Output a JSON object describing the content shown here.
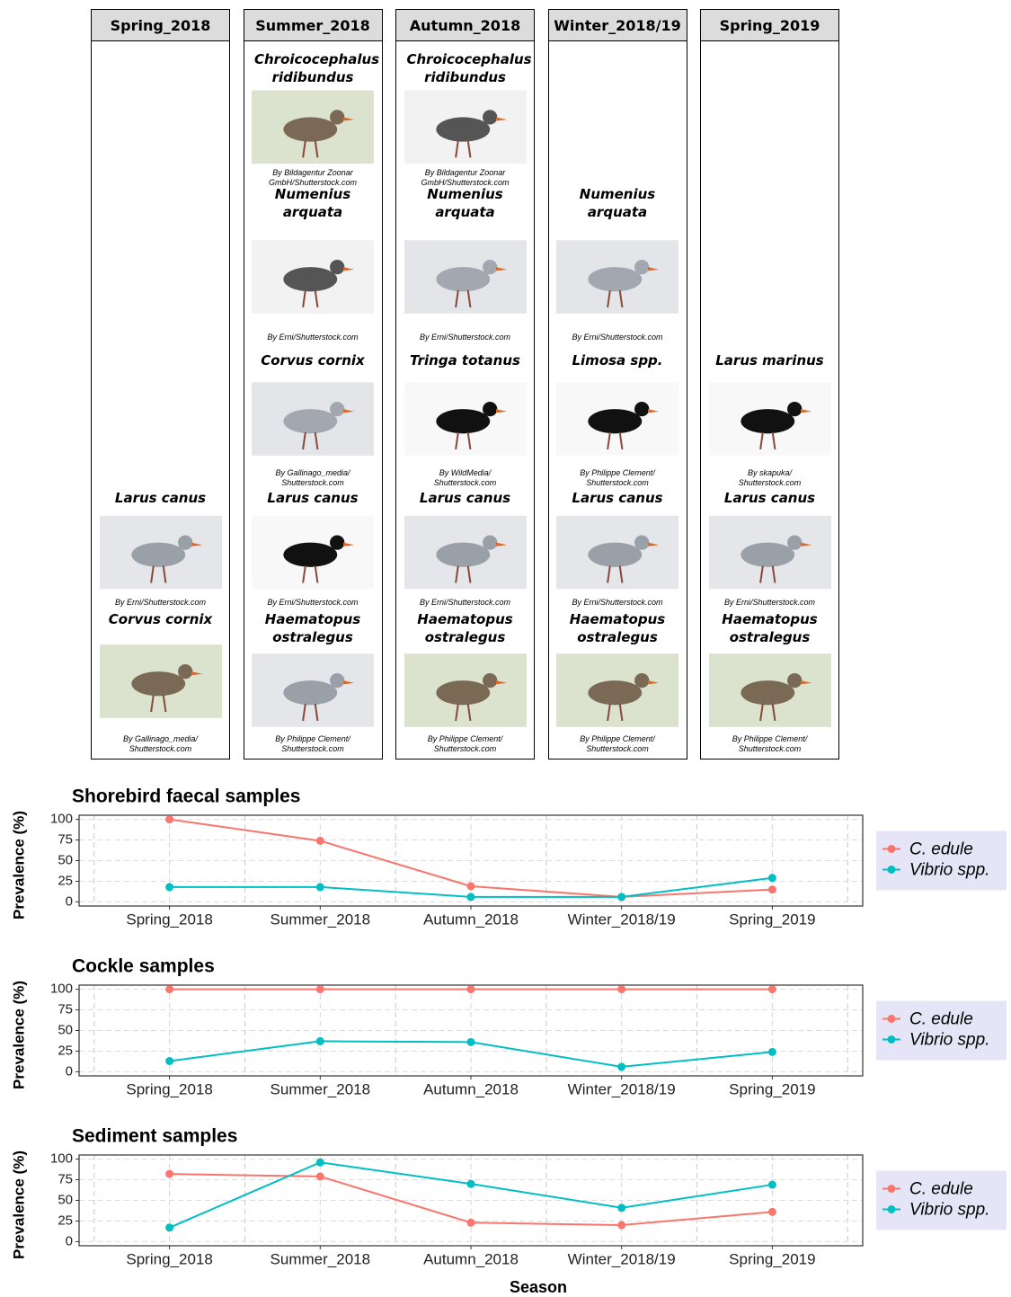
{
  "bird_panel": {
    "columns": [
      {
        "header": "Spring_2018",
        "birds": [
          {
            "name": "Larus canus",
            "credit": "By Erni/Shutterstock.com"
          },
          {
            "name": "Corvus cornix",
            "credit": "By Gallinago_media/ Shutterstock.com"
          }
        ]
      },
      {
        "header": "Summer_2018",
        "birds": [
          {
            "name": "Chroicocephalus ridibundus",
            "credit": "By Bildagentur Zoonar GmbH/Shutterstock.com"
          },
          {
            "name": "Numenius arquata",
            "credit": "By Erni/Shutterstock.com"
          },
          {
            "name": "Corvus cornix",
            "credit": "By Gallinago_media/ Shutterstock.com"
          },
          {
            "name": "Larus canus",
            "credit": "By Erni/Shutterstock.com"
          },
          {
            "name": "Haematopus ostralegus",
            "credit": "By Philippe Clement/ Shutterstock.com"
          }
        ]
      },
      {
        "header": "Autumn_2018",
        "birds": [
          {
            "name": "Chroicocephalus ridibundus",
            "credit": "By Bildagentur Zoonar GmbH/Shutterstock.com"
          },
          {
            "name": "Numenius arquata",
            "credit": "By Erni/Shutterstock.com"
          },
          {
            "name": "Tringa totanus",
            "credit": "By WildMedia/ Shutterstock.com"
          },
          {
            "name": "Larus canus",
            "credit": "By Erni/Shutterstock.com"
          },
          {
            "name": "Haematopus ostralegus",
            "credit": "By Philippe Clement/ Shutterstock.com"
          }
        ]
      },
      {
        "header": "Winter_2018/19",
        "birds": [
          {
            "name": "Numenius arquata",
            "credit": "By Erni/Shutterstock.com"
          },
          {
            "name": "Limosa spp.",
            "credit": "By Philippe Clement/ Shutterstock.com"
          },
          {
            "name": "Larus canus",
            "credit": "By Erni/Shutterstock.com"
          },
          {
            "name": "Haematopus ostralegus",
            "credit": "By Philippe Clement/ Shutterstock.com"
          }
        ]
      },
      {
        "header": "Spring_2019",
        "birds": [
          {
            "name": "Larus marinus",
            "credit": "By skapuka/ Shutterstock.com"
          },
          {
            "name": "Larus canus",
            "credit": "By Erni/Shutterstock.com"
          },
          {
            "name": "Haematopus ostralegus",
            "credit": "By Philippe Clement/ Shutterstock.com"
          }
        ]
      }
    ]
  },
  "chart_data": [
    {
      "type": "line",
      "title": "Shorebird faecal samples",
      "y_label": "Prevalence (%)",
      "categories": [
        "Spring_2018",
        "Summer_2018",
        "Autumn_2018",
        "Winter_2018/19",
        "Spring_2019"
      ],
      "series": [
        {
          "name": "C. edule",
          "color": "#f8766d",
          "values": [
            100,
            74,
            19,
            6,
            15
          ]
        },
        {
          "name": "Vibrio spp.",
          "color": "#00bfc4",
          "values": [
            18,
            18,
            6,
            6,
            29
          ]
        }
      ],
      "ylim": [
        -5,
        105
      ],
      "yticks": [
        0,
        25,
        50,
        75,
        100
      ],
      "grid": true,
      "legend": "right"
    },
    {
      "type": "line",
      "title": "Cockle samples",
      "y_label": "Prevalence (%)",
      "categories": [
        "Spring_2018",
        "Summer_2018",
        "Autumn_2018",
        "Winter_2018/19",
        "Spring_2019"
      ],
      "series": [
        {
          "name": "C. edule",
          "color": "#f8766d",
          "values": [
            100,
            100,
            100,
            100,
            100
          ]
        },
        {
          "name": "Vibrio spp.",
          "color": "#00bfc4",
          "values": [
            13,
            37,
            36,
            6,
            24
          ]
        }
      ],
      "ylim": [
        -5,
        105
      ],
      "yticks": [
        0,
        25,
        50,
        75,
        100
      ],
      "grid": true,
      "legend": "right"
    },
    {
      "type": "line",
      "title": "Sediment samples",
      "y_label": "Prevalence (%)",
      "x_label": "Season",
      "categories": [
        "Spring_2018",
        "Summer_2018",
        "Autumn_2018",
        "Winter_2018/19",
        "Spring_2019"
      ],
      "series": [
        {
          "name": "C. edule",
          "color": "#f8766d",
          "values": [
            82,
            79,
            23,
            20,
            36
          ]
        },
        {
          "name": "Vibrio spp.",
          "color": "#00bfc4",
          "values": [
            17,
            96,
            70,
            41,
            69
          ]
        }
      ],
      "ylim": [
        -5,
        105
      ],
      "yticks": [
        0,
        25,
        50,
        75,
        100
      ],
      "grid": true,
      "legend": "right"
    }
  ]
}
